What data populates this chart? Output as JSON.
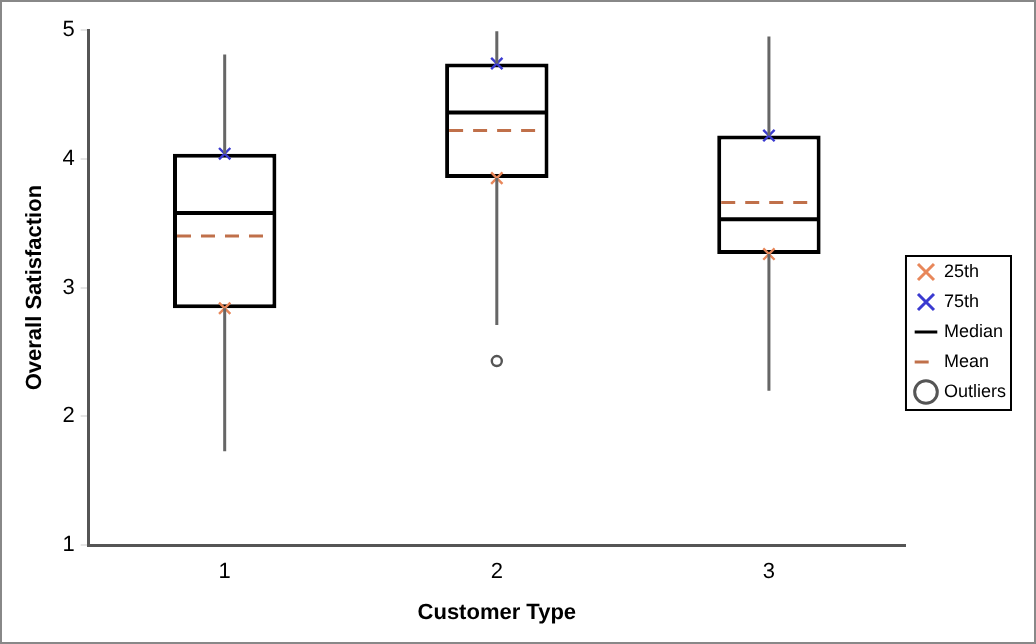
{
  "chart_data": {
    "type": "box",
    "categories": [
      "1",
      "2",
      "3"
    ],
    "xlabel": "Customer Type",
    "ylabel": "Overall Satisfaction",
    "ylim": [
      1,
      5
    ],
    "yticks": [
      1,
      2,
      3,
      4,
      5
    ],
    "grid": false,
    "legend": "right",
    "annotations": [
      "Mean"
    ],
    "series": [
      {
        "name": "25th",
        "type": "scatter",
        "x": [
          "1",
          "2",
          "3"
        ],
        "values": [
          2.84,
          3.85,
          3.26
        ],
        "color": "#e8875a",
        "marker": "cross"
      },
      {
        "name": "75th",
        "type": "scatter",
        "x": [
          "1",
          "2",
          "3"
        ],
        "values": [
          4.04,
          4.74,
          4.18
        ],
        "color": "#3a3ad0",
        "marker": "cross"
      },
      {
        "name": "Median",
        "type": "box",
        "color": "#000000",
        "boxes": [
          {
            "low": 1.73,
            "q1": 2.84,
            "median": 3.58,
            "q3": 4.04,
            "high": 4.81,
            "mean": 3.4
          },
          {
            "low": 2.71,
            "q1": 3.85,
            "median": 4.36,
            "q3": 4.74,
            "high": 4.99,
            "mean": 4.22
          },
          {
            "low": 2.2,
            "q1": 3.26,
            "median": 3.53,
            "q3": 4.18,
            "high": 4.95,
            "mean": 3.66
          }
        ]
      },
      {
        "name": "Outliers",
        "type": "scatter",
        "x": [
          "2"
        ],
        "values": [
          2.43
        ],
        "color": "#555555",
        "marker": "circle"
      }
    ]
  }
}
